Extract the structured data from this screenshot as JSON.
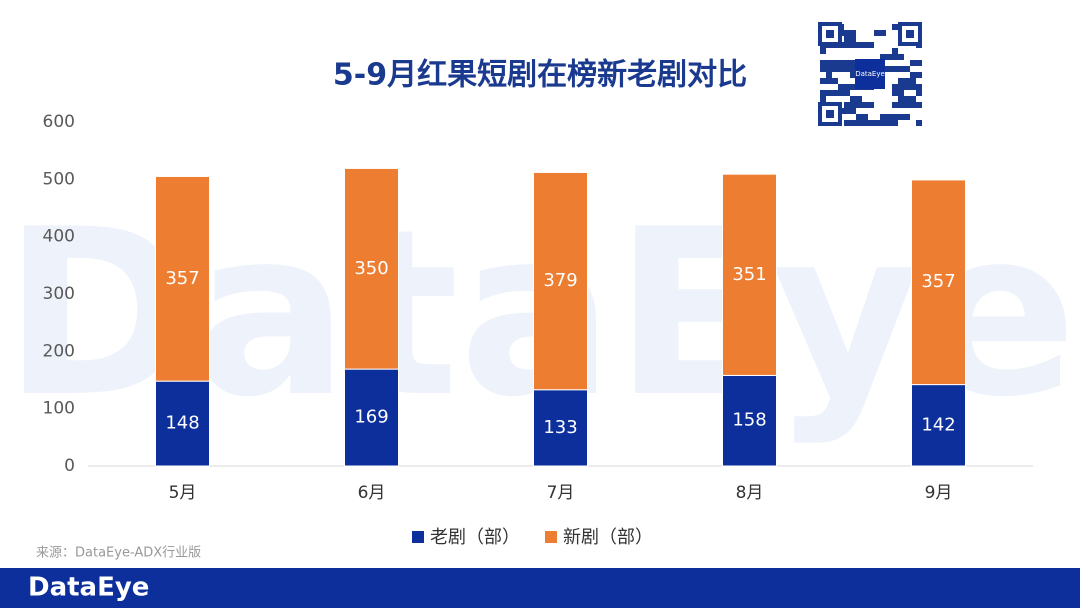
{
  "chart_data": {
    "type": "stacked_bar",
    "title": "5-9月红果短剧在榜新老剧对比",
    "categories": [
      "5月",
      "6月",
      "7月",
      "8月",
      "9月"
    ],
    "series": [
      {
        "name": "老剧（部）",
        "color": "#0d2f9c",
        "values": [
          148,
          169,
          133,
          158,
          142
        ]
      },
      {
        "name": "新剧（部）",
        "color": "#ed7d31",
        "values": [
          357,
          350,
          379,
          351,
          357
        ]
      }
    ],
    "ylim": [
      0,
      600
    ],
    "yticks": [
      0,
      100,
      200,
      300,
      400,
      500,
      600
    ],
    "grid": false,
    "legend": "bottom",
    "source": "来源：DataEye-ADX行业版",
    "brand": "DataEye"
  }
}
